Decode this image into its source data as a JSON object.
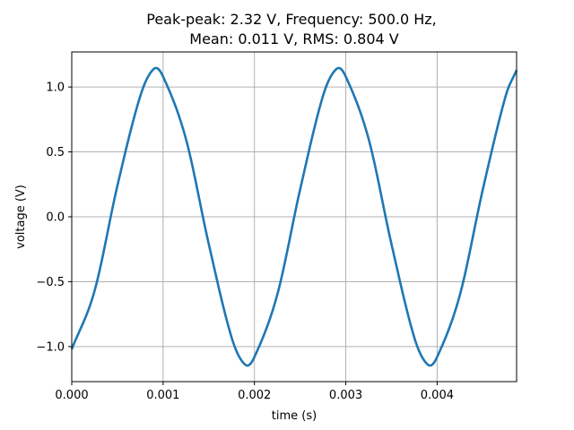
{
  "chart_data": {
    "type": "line",
    "title_lines": [
      "Peak-peak: 2.32 V, Frequency: 500.0 Hz,",
      "Mean: 0.011 V, RMS: 0.804 V"
    ],
    "xlabel": "time (s)",
    "ylabel": "voltage (V)",
    "xlim": [
      0.0,
      0.00487
    ],
    "ylim": [
      -1.27,
      1.27
    ],
    "xticks": [
      0.0,
      0.001,
      0.002,
      0.003,
      0.004
    ],
    "xtick_labels": [
      "0.000",
      "0.001",
      "0.002",
      "0.003",
      "0.004"
    ],
    "yticks": [
      -1.0,
      -0.5,
      0.0,
      0.5,
      1.0
    ],
    "ytick_labels": [
      "−1.0",
      "−0.5",
      "0.0",
      "0.5",
      "1.0"
    ],
    "grid": true,
    "series": [
      {
        "color": "#1f77b4",
        "x": [
          0.0,
          0.00025,
          0.0005,
          0.00075,
          0.0009,
          0.001,
          0.00125,
          0.0015,
          0.00175,
          0.0019,
          0.002,
          0.00225,
          0.0025,
          0.00275,
          0.0029,
          0.003,
          0.00325,
          0.0035,
          0.00375,
          0.0039,
          0.004,
          0.00425,
          0.0045,
          0.00475,
          0.00487
        ],
        "y": [
          -1.02,
          -0.57,
          0.24,
          0.93,
          1.14,
          1.08,
          0.6,
          -0.21,
          -0.93,
          -1.14,
          -1.08,
          -0.6,
          0.21,
          0.93,
          1.14,
          1.08,
          0.6,
          -0.21,
          -0.93,
          -1.14,
          -1.08,
          -0.6,
          0.21,
          0.93,
          1.13
        ]
      }
    ]
  }
}
